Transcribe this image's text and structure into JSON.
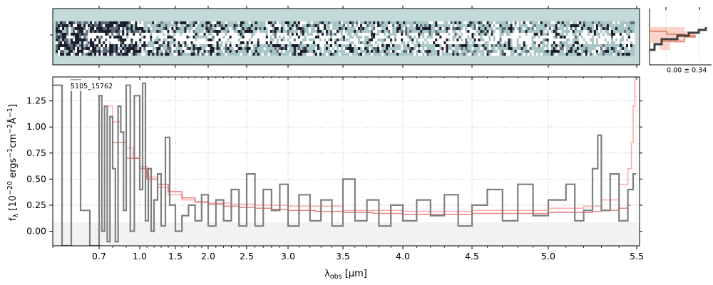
{
  "figure": {
    "object_id": "5105_15762",
    "profile_annotation": "0.00 ± 0.34",
    "xlabel_main": "λ",
    "xlabel_sub": "obs",
    "xlabel_unit": " [μm]",
    "ylabel": "f_λ [10^-20 ergs^-1 cm^-2 Å^-1]"
  },
  "colors": {
    "data": "#7f7f7f",
    "error_line": "#ff9896",
    "model": "#d62728",
    "twod_background": "#c3dad9",
    "profile_line": "#404040",
    "profile_fill": "#f7b6a8"
  },
  "chart_data": {
    "type": "line",
    "title": "",
    "xlabel": "λobs [μm]",
    "ylabel": "f_λ [10^-20 ergs^-1 cm^-2 Å^-1]",
    "x_axis_scale": "nonlinear (NIRSpec prism pixel grid)",
    "x_tick_labels": [
      "0.7",
      "1.0",
      "1.5",
      "2.0",
      "2.5",
      "3.0",
      "3.5",
      "4.0",
      "4.5",
      "5.0",
      "5.5"
    ],
    "x_ticks_um": [
      0.7,
      1.0,
      1.5,
      2.0,
      2.5,
      3.0,
      3.5,
      4.0,
      4.5,
      5.0,
      5.5
    ],
    "xlim_um": [
      0.6,
      5.5
    ],
    "y_tick_labels": [
      "0.00",
      "0.25",
      "0.50",
      "0.75",
      "1.00",
      "1.25"
    ],
    "y_ticks": [
      0.0,
      0.25,
      0.5,
      0.75,
      1.0,
      1.25
    ],
    "ylim": [
      -0.14,
      1.48
    ],
    "grid": true,
    "series": [
      {
        "role": "data",
        "style": "step",
        "x": [
          0.6,
          0.62,
          0.64,
          0.66,
          0.68,
          0.7,
          0.72,
          0.74,
          0.76,
          0.78,
          0.8,
          0.82,
          0.84,
          0.86,
          0.88,
          0.9,
          0.93,
          0.96,
          1.0,
          1.04,
          1.08,
          1.12,
          1.16,
          1.2,
          1.25,
          1.3,
          1.36,
          1.42,
          1.5,
          1.6,
          1.7,
          1.8,
          1.9,
          2.0,
          2.1,
          2.2,
          2.3,
          2.4,
          2.5,
          2.6,
          2.7,
          2.8,
          2.9,
          3.0,
          3.1,
          3.2,
          3.3,
          3.4,
          3.5,
          3.6,
          3.7,
          3.8,
          3.9,
          4.0,
          4.1,
          4.2,
          4.3,
          4.4,
          4.5,
          4.6,
          4.7,
          4.8,
          4.9,
          5.0,
          5.1,
          5.15,
          5.2,
          5.25,
          5.28,
          5.3,
          5.35,
          5.4,
          5.45,
          5.48
        ],
        "values": [
          1.4,
          -0.14,
          1.45,
          0.2,
          -0.14,
          1.3,
          0.0,
          1.2,
          -0.1,
          1.1,
          0.6,
          -0.1,
          1.2,
          0.95,
          0.2,
          1.4,
          0.0,
          1.3,
          0.4,
          1.42,
          0.1,
          0.6,
          0.0,
          0.3,
          0.55,
          0.05,
          0.9,
          0.25,
          0.0,
          0.15,
          0.25,
          0.1,
          0.35,
          0.05,
          0.3,
          0.1,
          0.4,
          0.05,
          0.55,
          0.05,
          0.4,
          0.2,
          0.45,
          0.05,
          0.35,
          0.1,
          0.3,
          0.05,
          0.5,
          0.1,
          0.3,
          0.05,
          0.25,
          0.1,
          0.3,
          0.15,
          0.35,
          0.05,
          0.25,
          0.4,
          0.1,
          0.45,
          0.15,
          0.3,
          0.45,
          0.1,
          0.2,
          0.6,
          0.92,
          0.2,
          0.55,
          0.1,
          0.4,
          0.55
        ]
      },
      {
        "role": "uncertainty",
        "style": "step",
        "x": [
          0.75,
          0.8,
          0.86,
          0.9,
          0.95,
          1.0,
          1.1,
          1.25,
          1.4,
          1.6,
          1.8,
          2.0,
          2.3,
          2.6,
          3.0,
          3.5,
          4.0,
          4.5,
          5.0,
          5.2,
          5.3,
          5.4,
          5.45,
          5.47,
          5.48,
          5.49
        ],
        "values": [
          1.2,
          1.05,
          0.95,
          0.8,
          0.7,
          0.62,
          0.52,
          0.42,
          0.35,
          0.3,
          0.28,
          0.27,
          0.26,
          0.25,
          0.24,
          0.2,
          0.19,
          0.2,
          0.22,
          0.24,
          0.3,
          0.45,
          0.6,
          0.85,
          1.2,
          1.48
        ]
      },
      {
        "role": "model",
        "style": "step",
        "x": [
          0.8,
          0.9,
          1.0,
          1.1,
          1.25,
          1.4,
          1.6,
          1.8,
          2.0,
          2.2,
          2.4,
          2.6,
          2.8,
          3.0,
          3.25,
          3.5,
          3.75,
          4.0,
          4.25,
          4.5,
          4.75,
          5.0,
          5.25,
          5.3,
          5.4,
          5.45
        ],
        "values": [
          0.85,
          0.7,
          0.6,
          0.5,
          0.45,
          0.38,
          0.32,
          0.28,
          0.26,
          0.24,
          0.23,
          0.22,
          0.21,
          0.2,
          0.19,
          0.18,
          0.17,
          0.16,
          0.16,
          0.17,
          0.17,
          0.18,
          0.19,
          0.2,
          0.22,
          0.25
        ]
      }
    ]
  }
}
